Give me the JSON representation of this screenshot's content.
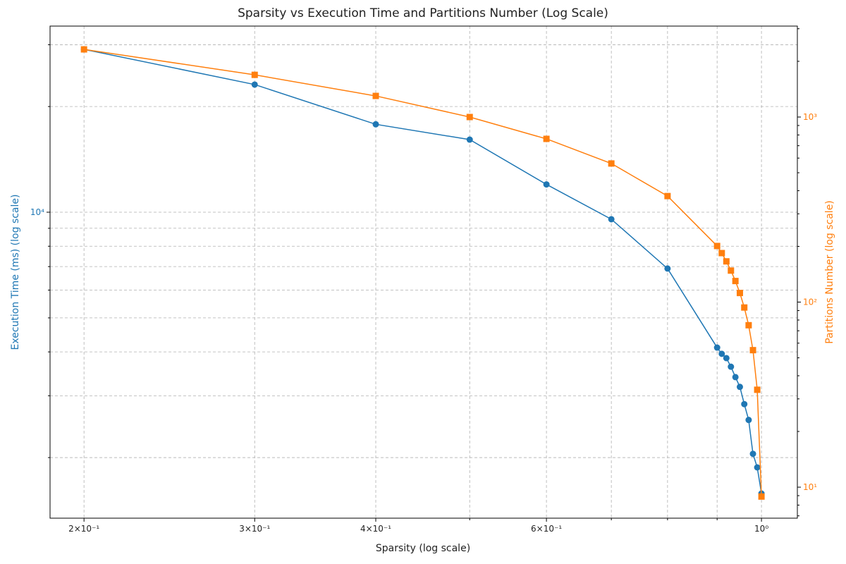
{
  "chart_data": {
    "type": "line",
    "title": "Sparsity vs Execution Time and Partitions Number (Log Scale)",
    "x_label": "Sparsity (log scale)",
    "y_label": "Execution Time (ms) (log scale)",
    "y2_label": "Partitions Number (log scale)",
    "x_scale": "log",
    "y_scale": "log",
    "y2_scale": "log",
    "grid": true,
    "x": [
      0.2,
      0.3,
      0.4,
      0.5,
      0.6,
      0.7,
      0.8,
      0.9,
      0.91,
      0.92,
      0.93,
      0.94,
      0.95,
      0.96,
      0.97,
      0.98,
      0.99,
      1.0
    ],
    "series": [
      {
        "name": "Execution Time",
        "color": "#1f77b4",
        "marker": "circle",
        "axis": "y",
        "values": [
          29100,
          23100,
          17800,
          16100,
          12000,
          9550,
          6910,
          4115,
          3950,
          3840,
          3630,
          3390,
          3180,
          2840,
          2560,
          2050,
          1875,
          1580
        ]
      },
      {
        "name": "Partitions Number",
        "color": "#ff7f0e",
        "marker": "square",
        "axis": "y2",
        "values": [
          2320,
          1690,
          1300,
          1000,
          762,
          561,
          374,
          201,
          184,
          166,
          148,
          130,
          112,
          93.5,
          75,
          55,
          33.6,
          8.9
        ]
      }
    ],
    "xlim": [
      0.1845,
      1.089
    ],
    "xticks": [
      {
        "value": 0.2,
        "label": "2×10⁻¹"
      },
      {
        "value": 0.3,
        "label": "3×10⁻¹"
      },
      {
        "value": 0.4,
        "label": "4×10⁻¹"
      },
      {
        "value": 0.6,
        "label": "6×10⁻¹"
      },
      {
        "value": 1.0,
        "label": "10⁰"
      }
    ],
    "x_minor_ticks": [
      0.5,
      0.7,
      0.8,
      0.9
    ],
    "ylim": [
      1344,
      33900
    ],
    "yticks": [
      {
        "value": 10000,
        "label": "10⁴"
      }
    ],
    "y_minor_ticks": [
      2000,
      3000,
      4000,
      5000,
      6000,
      7000,
      8000,
      9000,
      20000,
      30000
    ],
    "y2lim": [
      6.8,
      3100
    ],
    "y2ticks": [
      {
        "value": 10,
        "label": "10¹"
      },
      {
        "value": 100,
        "label": "10²"
      },
      {
        "value": 1000,
        "label": "10³"
      }
    ],
    "y2_minor_ticks": [
      7,
      8,
      9,
      20,
      30,
      40,
      50,
      60,
      70,
      80,
      90,
      200,
      300,
      400,
      500,
      600,
      700,
      800,
      900,
      2000,
      3000
    ]
  }
}
